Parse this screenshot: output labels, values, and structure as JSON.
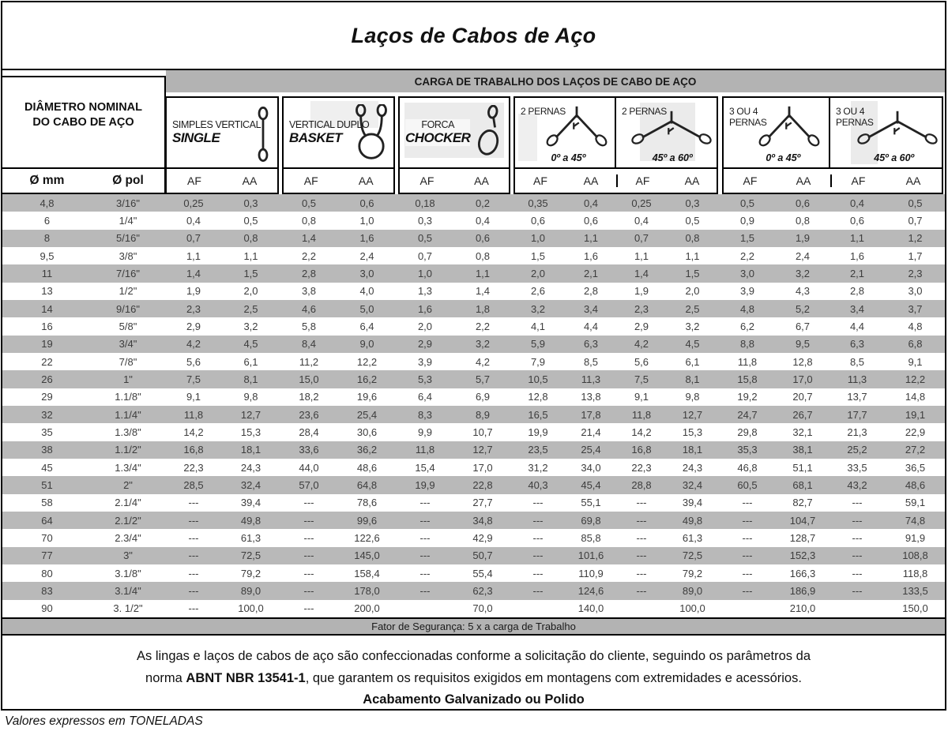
{
  "title": "Laços de Cabos de Aço",
  "band_title": "CARGA DE TRABALHO DOS LAÇOS DE CABO DE AÇO",
  "left_header": {
    "line1": "DIÂMETRO NOMINAL",
    "line2": "DO CABO DE AÇO",
    "col_mm": "Ø mm",
    "col_pol": "Ø pol"
  },
  "af_label": "AF",
  "aa_label": "AA",
  "groups": [
    {
      "name": "simples-vertical",
      "label_lines": [
        "SIMPLES VERTICAL"
      ],
      "sub": "SINGLE",
      "icon": "single-vertical-sling-icon"
    },
    {
      "name": "vertical-duplo",
      "label_lines": [
        "VERTICAL DUPLO"
      ],
      "sub": "BASKET",
      "icon": "basket-sling-icon"
    },
    {
      "name": "forca",
      "label_lines": [
        "FORCA"
      ],
      "sub": "CHOCKER",
      "icon": "choker-sling-icon"
    },
    {
      "name": "2-pernas-0-45",
      "label_lines": [
        "2 PERNAS"
      ],
      "angle": "0º a 45º",
      "icon": "two-leg-sling-0-45-icon"
    },
    {
      "name": "2-pernas-45-60",
      "label_lines": [
        "2 PERNAS"
      ],
      "angle": "45º a 60º",
      "icon": "two-leg-sling-45-60-icon"
    },
    {
      "name": "3-ou-4-pernas-0-45",
      "label_lines": [
        "3 OU 4",
        "PERNAS"
      ],
      "angle": "0º a 45º",
      "icon": "multi-leg-sling-0-45-icon"
    },
    {
      "name": "3-ou-4-pernas-45-60",
      "label_lines": [
        "3 OU 4",
        "PERNAS"
      ],
      "angle": "45º a 60º",
      "icon": "multi-leg-sling-45-60-icon"
    }
  ],
  "rows": [
    {
      "mm": "4,8",
      "pol": "3/16\"",
      "values": [
        "0,25",
        "0,3",
        "0,5",
        "0,6",
        "0,18",
        "0,2",
        "0,35",
        "0,4",
        "0,25",
        "0,3",
        "0,5",
        "0,6",
        "0,4",
        "0,5"
      ]
    },
    {
      "mm": "6",
      "pol": "1/4\"",
      "values": [
        "0,4",
        "0,5",
        "0,8",
        "1,0",
        "0,3",
        "0,4",
        "0,6",
        "0,6",
        "0,4",
        "0,5",
        "0,9",
        "0,8",
        "0,6",
        "0,7"
      ]
    },
    {
      "mm": "8",
      "pol": "5/16\"",
      "values": [
        "0,7",
        "0,8",
        "1,4",
        "1,6",
        "0,5",
        "0,6",
        "1,0",
        "1,1",
        "0,7",
        "0,8",
        "1,5",
        "1,9",
        "1,1",
        "1,2"
      ]
    },
    {
      "mm": "9,5",
      "pol": "3/8\"",
      "values": [
        "1,1",
        "1,1",
        "2,2",
        "2,4",
        "0,7",
        "0,8",
        "1,5",
        "1,6",
        "1,1",
        "1,1",
        "2,2",
        "2,4",
        "1,6",
        "1,7"
      ]
    },
    {
      "mm": "11",
      "pol": "7/16\"",
      "values": [
        "1,4",
        "1,5",
        "2,8",
        "3,0",
        "1,0",
        "1,1",
        "2,0",
        "2,1",
        "1,4",
        "1,5",
        "3,0",
        "3,2",
        "2,1",
        "2,3"
      ]
    },
    {
      "mm": "13",
      "pol": "1/2\"",
      "values": [
        "1,9",
        "2,0",
        "3,8",
        "4,0",
        "1,3",
        "1,4",
        "2,6",
        "2,8",
        "1,9",
        "2,0",
        "3,9",
        "4,3",
        "2,8",
        "3,0"
      ]
    },
    {
      "mm": "14",
      "pol": "9/16\"",
      "values": [
        "2,3",
        "2,5",
        "4,6",
        "5,0",
        "1,6",
        "1,8",
        "3,2",
        "3,4",
        "2,3",
        "2,5",
        "4,8",
        "5,2",
        "3,4",
        "3,7"
      ]
    },
    {
      "mm": "16",
      "pol": "5/8\"",
      "values": [
        "2,9",
        "3,2",
        "5,8",
        "6,4",
        "2,0",
        "2,2",
        "4,1",
        "4,4",
        "2,9",
        "3,2",
        "6,2",
        "6,7",
        "4,4",
        "4,8"
      ]
    },
    {
      "mm": "19",
      "pol": "3/4\"",
      "values": [
        "4,2",
        "4,5",
        "8,4",
        "9,0",
        "2,9",
        "3,2",
        "5,9",
        "6,3",
        "4,2",
        "4,5",
        "8,8",
        "9,5",
        "6,3",
        "6,8"
      ]
    },
    {
      "mm": "22",
      "pol": "7/8\"",
      "values": [
        "5,6",
        "6,1",
        "11,2",
        "12,2",
        "3,9",
        "4,2",
        "7,9",
        "8,5",
        "5,6",
        "6,1",
        "11,8",
        "12,8",
        "8,5",
        "9,1"
      ]
    },
    {
      "mm": "26",
      "pol": "1\"",
      "values": [
        "7,5",
        "8,1",
        "15,0",
        "16,2",
        "5,3",
        "5,7",
        "10,5",
        "11,3",
        "7,5",
        "8,1",
        "15,8",
        "17,0",
        "11,3",
        "12,2"
      ]
    },
    {
      "mm": "29",
      "pol": "1.1/8\"",
      "values": [
        "9,1",
        "9,8",
        "18,2",
        "19,6",
        "6,4",
        "6,9",
        "12,8",
        "13,8",
        "9,1",
        "9,8",
        "19,2",
        "20,7",
        "13,7",
        "14,8"
      ]
    },
    {
      "mm": "32",
      "pol": "1.1/4\"",
      "values": [
        "11,8",
        "12,7",
        "23,6",
        "25,4",
        "8,3",
        "8,9",
        "16,5",
        "17,8",
        "11,8",
        "12,7",
        "24,7",
        "26,7",
        "17,7",
        "19,1"
      ]
    },
    {
      "mm": "35",
      "pol": "1.3/8\"",
      "values": [
        "14,2",
        "15,3",
        "28,4",
        "30,6",
        "9,9",
        "10,7",
        "19,9",
        "21,4",
        "14,2",
        "15,3",
        "29,8",
        "32,1",
        "21,3",
        "22,9"
      ]
    },
    {
      "mm": "38",
      "pol": "1.1/2\"",
      "values": [
        "16,8",
        "18,1",
        "33,6",
        "36,2",
        "11,8",
        "12,7",
        "23,5",
        "25,4",
        "16,8",
        "18,1",
        "35,3",
        "38,1",
        "25,2",
        "27,2"
      ]
    },
    {
      "mm": "45",
      "pol": "1.3/4\"",
      "values": [
        "22,3",
        "24,3",
        "44,0",
        "48,6",
        "15,4",
        "17,0",
        "31,2",
        "34,0",
        "22,3",
        "24,3",
        "46,8",
        "51,1",
        "33,5",
        "36,5"
      ]
    },
    {
      "mm": "51",
      "pol": "2\"",
      "values": [
        "28,5",
        "32,4",
        "57,0",
        "64,8",
        "19,9",
        "22,8",
        "40,3",
        "45,4",
        "28,8",
        "32,4",
        "60,5",
        "68,1",
        "43,2",
        "48,6"
      ]
    },
    {
      "mm": "58",
      "pol": "2.1/4\"",
      "values": [
        "---",
        "39,4",
        "---",
        "78,6",
        "---",
        "27,7",
        "---",
        "55,1",
        "---",
        "39,4",
        "---",
        "82,7",
        "---",
        "59,1"
      ]
    },
    {
      "mm": "64",
      "pol": "2.1/2\"",
      "values": [
        "---",
        "49,8",
        "---",
        "99,6",
        "---",
        "34,8",
        "---",
        "69,8",
        "---",
        "49,8",
        "---",
        "104,7",
        "---",
        "74,8"
      ]
    },
    {
      "mm": "70",
      "pol": "2.3/4\"",
      "values": [
        "---",
        "61,3",
        "---",
        "122,6",
        "---",
        "42,9",
        "---",
        "85,8",
        "---",
        "61,3",
        "---",
        "128,7",
        "---",
        "91,9"
      ]
    },
    {
      "mm": "77",
      "pol": "3\"",
      "values": [
        "---",
        "72,5",
        "---",
        "145,0",
        "---",
        "50,7",
        "---",
        "101,6",
        "---",
        "72,5",
        "---",
        "152,3",
        "---",
        "108,8"
      ]
    },
    {
      "mm": "80",
      "pol": "3.1/8\"",
      "values": [
        "---",
        "79,2",
        "---",
        "158,4",
        "---",
        "55,4",
        "---",
        "110,9",
        "---",
        "79,2",
        "---",
        "166,3",
        "---",
        "118,8"
      ]
    },
    {
      "mm": "83",
      "pol": "3.1/4\"",
      "values": [
        "---",
        "89,0",
        "---",
        "178,0",
        "---",
        "62,3",
        "---",
        "124,6",
        "---",
        "89,0",
        "---",
        "186,9",
        "---",
        "133,5"
      ]
    },
    {
      "mm": "90",
      "pol": "3. 1/2\"",
      "values": [
        "---",
        "100,0",
        "---",
        "200,0",
        "",
        "70,0",
        "",
        "140,0",
        "",
        "100,0",
        "",
        "210,0",
        "",
        "150,0"
      ]
    }
  ],
  "safety_note": "Fator de Segurança: 5 x a carga de Trabalho",
  "footer": {
    "line1": "As lingas e laços de cabos de aço são confeccionadas conforme a solicitação do cliente, seguindo os parâmetros da",
    "line2_prefix": "norma ",
    "line2_bold": "ABNT NBR 13541-1",
    "line2_suffix": ", que garantem os requisitos exigidos em montagens com extremidades e acessórios.",
    "line3": "Acabamento Galvanizado ou Polido"
  },
  "bottom_note": "Valores expressos em TONELADAS",
  "colors": {
    "stripe_gray": "#b9b9b9",
    "band_gray": "#b3b3b3",
    "border_black": "#000000",
    "body_text": "#3d3d3d"
  }
}
